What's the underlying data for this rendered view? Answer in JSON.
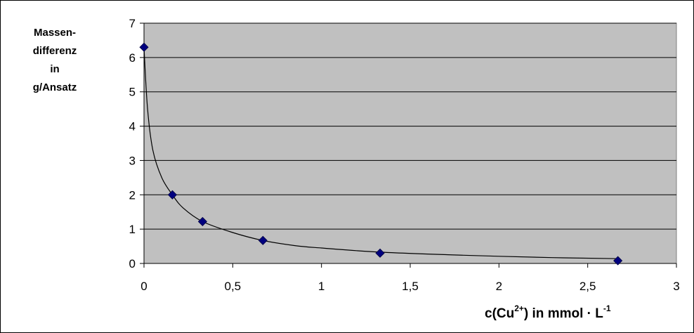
{
  "chart_data": {
    "type": "scatter",
    "title": "",
    "ylabel_lines": [
      "Massen-",
      "differenz",
      "in",
      "g/Ansatz"
    ],
    "xlabel": {
      "prefix": "c(Cu",
      "superscript": "2+",
      "middle": ") in mmol · L",
      "unit_superscript": "-1"
    },
    "xlim": [
      0,
      3
    ],
    "ylim": [
      0,
      7
    ],
    "x_ticks": [
      0,
      0.5,
      1,
      1.5,
      2,
      2.5,
      3
    ],
    "x_tick_labels": [
      "0",
      "0,5",
      "1",
      "1,5",
      "2",
      "2,5",
      "3"
    ],
    "y_ticks": [
      0,
      1,
      2,
      3,
      4,
      5,
      6,
      7
    ],
    "y_tick_labels": [
      "0",
      "1",
      "2",
      "3",
      "4",
      "5",
      "6",
      "7"
    ],
    "grid": "horizontal",
    "plot_background": "#c0c0c0",
    "marker": "diamond",
    "marker_color": "#00007f",
    "series": [
      {
        "x": [
          0,
          0.16,
          0.33,
          0.67,
          1.33,
          2.67
        ],
        "y": [
          6.3,
          2.0,
          1.22,
          0.67,
          0.3,
          0.08
        ]
      }
    ],
    "trendline": {
      "x": [
        0,
        0.02,
        0.05,
        0.1,
        0.16,
        0.22,
        0.33,
        0.5,
        0.67,
        0.85,
        1.0,
        1.33,
        1.8,
        2.3,
        2.67
      ],
      "y": [
        6.3,
        4.5,
        3.3,
        2.5,
        2.0,
        1.62,
        1.22,
        0.9,
        0.67,
        0.52,
        0.45,
        0.33,
        0.24,
        0.17,
        0.14
      ]
    }
  }
}
